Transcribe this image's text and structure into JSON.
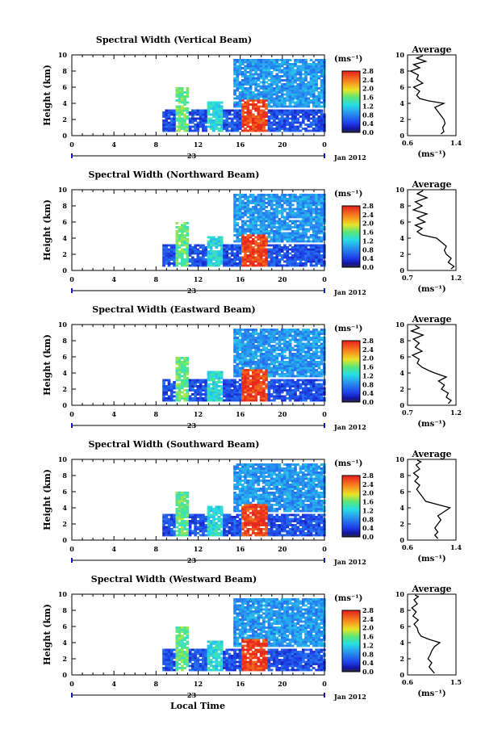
{
  "colorbar_ticks": [
    "0.0",
    "0.4",
    "0.8",
    "1.2",
    "1.6",
    "2.0",
    "2.4",
    "2.8"
  ],
  "colorbar_unit": "(ms⁻¹)",
  "x_axis": {
    "ticks": [
      "0",
      "4",
      "8",
      "12",
      "16",
      "20",
      "0"
    ],
    "day": "23",
    "month_year": "Jan 2012",
    "label": "Local Time"
  },
  "y_label": "Height (km)",
  "avg_unit": "(ms⁻¹)",
  "chart_data": [
    {
      "type": "heatmap",
      "title": "Spectral Width (Vertical Beam)",
      "xlabel": "Local Time",
      "ylabel": "Height (km)",
      "xlim": [
        0,
        24
      ],
      "ylim": [
        0,
        10
      ],
      "colorbar": {
        "unit": "(ms⁻¹)",
        "range": [
          0.0,
          2.8
        ]
      },
      "features": [
        {
          "x": [
            8.6,
            24
          ],
          "y": [
            0.4,
            3.2
          ],
          "value": 0.5
        },
        {
          "x": [
            9.8,
            11.0
          ],
          "y": [
            0.4,
            5.8
          ],
          "value": 1.6
        },
        {
          "x": [
            12.8,
            14.2
          ],
          "y": [
            0.4,
            4.2
          ],
          "value": 1.3
        },
        {
          "x": [
            15.3,
            24
          ],
          "y": [
            3.5,
            9.5
          ],
          "value": 0.9
        },
        {
          "x": [
            16.0,
            18.5
          ],
          "y": [
            0.4,
            4.5
          ],
          "value": 2.7
        }
      ],
      "average": {
        "title": "Average",
        "xlabel": "(ms⁻¹)",
        "xticks": [
          "0.6",
          "1.4"
        ],
        "xlim": [
          0.6,
          1.4
        ],
        "yticks": [
          "0",
          "2",
          "4",
          "6",
          "8",
          "10"
        ],
        "profile": [
          [
            1.15,
            0.2
          ],
          [
            1.2,
            0.5
          ],
          [
            1.18,
            1.0
          ],
          [
            1.22,
            1.5
          ],
          [
            1.2,
            2.0
          ],
          [
            1.15,
            2.5
          ],
          [
            1.1,
            3.0
          ],
          [
            1.05,
            3.5
          ],
          [
            1.2,
            4.0
          ],
          [
            0.95,
            4.3
          ],
          [
            0.8,
            4.6
          ],
          [
            0.75,
            5.0
          ],
          [
            0.8,
            5.5
          ],
          [
            0.7,
            6.0
          ],
          [
            0.85,
            6.5
          ],
          [
            0.75,
            7.0
          ],
          [
            0.78,
            7.5
          ],
          [
            0.65,
            8.0
          ],
          [
            0.8,
            8.4
          ],
          [
            0.7,
            8.8
          ],
          [
            0.9,
            9.2
          ],
          [
            0.75,
            9.6
          ],
          [
            0.85,
            9.9
          ]
        ]
      }
    },
    {
      "type": "heatmap",
      "title": "Spectral Width (Northward Beam)",
      "xlabel": "Local Time",
      "ylabel": "Height (km)",
      "xlim": [
        0,
        24
      ],
      "ylim": [
        0,
        10
      ],
      "colorbar": {
        "unit": "(ms⁻¹)",
        "range": [
          0.0,
          2.8
        ]
      },
      "features": [
        {
          "x": [
            8.6,
            24
          ],
          "y": [
            0.4,
            3.2
          ],
          "value": 0.5
        },
        {
          "x": [
            9.8,
            11.0
          ],
          "y": [
            0.4,
            5.8
          ],
          "value": 1.6
        },
        {
          "x": [
            12.8,
            14.2
          ],
          "y": [
            0.4,
            4.2
          ],
          "value": 1.3
        },
        {
          "x": [
            15.3,
            24
          ],
          "y": [
            3.5,
            9.5
          ],
          "value": 0.9
        },
        {
          "x": [
            16.0,
            18.5
          ],
          "y": [
            0.4,
            4.5
          ],
          "value": 2.7
        }
      ],
      "average": {
        "title": "Average",
        "xlabel": "(ms⁻¹)",
        "xticks": [
          "0.7",
          "1.2"
        ],
        "xlim": [
          0.7,
          1.2
        ],
        "yticks": [
          "0",
          "2",
          "4",
          "6",
          "8",
          "10"
        ],
        "profile": [
          [
            1.15,
            0.2
          ],
          [
            1.18,
            0.5
          ],
          [
            1.12,
            1.0
          ],
          [
            1.15,
            1.5
          ],
          [
            1.1,
            2.0
          ],
          [
            1.08,
            2.5
          ],
          [
            1.1,
            3.0
          ],
          [
            1.05,
            3.5
          ],
          [
            1.0,
            4.0
          ],
          [
            0.85,
            4.4
          ],
          [
            0.8,
            4.8
          ],
          [
            0.85,
            5.2
          ],
          [
            0.78,
            5.6
          ],
          [
            0.88,
            6.0
          ],
          [
            0.8,
            6.5
          ],
          [
            0.9,
            7.0
          ],
          [
            0.76,
            7.5
          ],
          [
            0.85,
            8.0
          ],
          [
            0.78,
            8.5
          ],
          [
            0.9,
            9.0
          ],
          [
            0.8,
            9.5
          ],
          [
            0.86,
            9.9
          ]
        ]
      }
    },
    {
      "type": "heatmap",
      "title": "Spectral Width (Eastward Beam)",
      "xlabel": "Local Time",
      "ylabel": "Height (km)",
      "xlim": [
        0,
        24
      ],
      "ylim": [
        0,
        10
      ],
      "colorbar": {
        "unit": "(ms⁻¹)",
        "range": [
          0.0,
          2.8
        ]
      },
      "features": [
        {
          "x": [
            8.6,
            24
          ],
          "y": [
            0.4,
            3.2
          ],
          "value": 0.5
        },
        {
          "x": [
            9.8,
            11.0
          ],
          "y": [
            0.4,
            5.8
          ],
          "value": 1.6
        },
        {
          "x": [
            12.8,
            14.2
          ],
          "y": [
            0.4,
            4.2
          ],
          "value": 1.3
        },
        {
          "x": [
            15.3,
            24
          ],
          "y": [
            3.5,
            9.5
          ],
          "value": 0.9
        },
        {
          "x": [
            16.0,
            18.5
          ],
          "y": [
            0.4,
            4.5
          ],
          "value": 2.7
        }
      ],
      "average": {
        "title": "Average",
        "xlabel": "(ms⁻¹)",
        "xticks": [
          "0.7",
          "1.2"
        ],
        "xlim": [
          0.7,
          1.2
        ],
        "yticks": [
          "0",
          "2",
          "4",
          "6",
          "8",
          "10"
        ],
        "profile": [
          [
            1.12,
            0.2
          ],
          [
            1.15,
            0.6
          ],
          [
            1.1,
            1.0
          ],
          [
            1.12,
            1.5
          ],
          [
            1.05,
            2.0
          ],
          [
            1.08,
            2.5
          ],
          [
            1.02,
            3.0
          ],
          [
            1.1,
            3.5
          ],
          [
            0.98,
            4.0
          ],
          [
            0.92,
            4.3
          ],
          [
            0.85,
            4.7
          ],
          [
            0.8,
            5.2
          ],
          [
            0.82,
            5.7
          ],
          [
            0.75,
            6.2
          ],
          [
            0.85,
            6.7
          ],
          [
            0.78,
            7.2
          ],
          [
            0.82,
            7.7
          ],
          [
            0.76,
            8.2
          ],
          [
            0.86,
            8.7
          ],
          [
            0.74,
            9.2
          ],
          [
            0.82,
            9.6
          ],
          [
            0.78,
            9.9
          ]
        ]
      }
    },
    {
      "type": "heatmap",
      "title": "Spectral Width (Southward Beam)",
      "xlabel": "Local Time",
      "ylabel": "Height (km)",
      "xlim": [
        0,
        24
      ],
      "ylim": [
        0,
        10
      ],
      "colorbar": {
        "unit": "(ms⁻¹)",
        "range": [
          0.0,
          2.8
        ]
      },
      "features": [
        {
          "x": [
            8.6,
            24
          ],
          "y": [
            0.4,
            3.2
          ],
          "value": 0.5
        },
        {
          "x": [
            9.8,
            11.0
          ],
          "y": [
            0.4,
            5.8
          ],
          "value": 1.6
        },
        {
          "x": [
            12.8,
            14.2
          ],
          "y": [
            0.4,
            4.2
          ],
          "value": 1.3
        },
        {
          "x": [
            15.3,
            24
          ],
          "y": [
            3.5,
            9.5
          ],
          "value": 0.9
        },
        {
          "x": [
            16.0,
            18.5
          ],
          "y": [
            0.4,
            4.5
          ],
          "value": 2.7
        }
      ],
      "average": {
        "title": "Average",
        "xlabel": "(ms⁻¹)",
        "xticks": [
          "0.6",
          "1.4"
        ],
        "xlim": [
          0.6,
          1.4
        ],
        "yticks": [
          "0",
          "2",
          "4",
          "6",
          "8",
          "10"
        ],
        "profile": [
          [
            1.1,
            0.2
          ],
          [
            1.05,
            0.6
          ],
          [
            1.1,
            1.0
          ],
          [
            1.05,
            1.5
          ],
          [
            1.1,
            2.0
          ],
          [
            1.15,
            2.5
          ],
          [
            1.1,
            3.0
          ],
          [
            1.2,
            3.5
          ],
          [
            1.3,
            4.0
          ],
          [
            1.1,
            4.4
          ],
          [
            0.9,
            4.8
          ],
          [
            0.85,
            5.3
          ],
          [
            0.8,
            5.8
          ],
          [
            0.75,
            6.3
          ],
          [
            0.8,
            6.8
          ],
          [
            0.72,
            7.3
          ],
          [
            0.78,
            7.8
          ],
          [
            0.7,
            8.3
          ],
          [
            0.8,
            8.8
          ],
          [
            0.74,
            9.3
          ],
          [
            0.82,
            9.7
          ],
          [
            0.76,
            9.9
          ]
        ]
      }
    },
    {
      "type": "heatmap",
      "title": "Spectral Width (Westward Beam)",
      "xlabel": "Local Time",
      "ylabel": "Height (km)",
      "xlim": [
        0,
        24
      ],
      "ylim": [
        0,
        10
      ],
      "colorbar": {
        "unit": "(ms⁻¹)",
        "range": [
          0.0,
          2.8
        ]
      },
      "features": [
        {
          "x": [
            8.6,
            24
          ],
          "y": [
            0.4,
            3.2
          ],
          "value": 0.5
        },
        {
          "x": [
            9.8,
            11.0
          ],
          "y": [
            0.4,
            5.8
          ],
          "value": 1.6
        },
        {
          "x": [
            12.8,
            14.2
          ],
          "y": [
            0.4,
            4.2
          ],
          "value": 1.3
        },
        {
          "x": [
            15.3,
            24
          ],
          "y": [
            3.5,
            9.5
          ],
          "value": 0.9
        },
        {
          "x": [
            16.0,
            18.5
          ],
          "y": [
            0.4,
            4.5
          ],
          "value": 2.7
        }
      ],
      "average": {
        "title": "Average",
        "xlabel": "(ms⁻¹)",
        "xticks": [
          "0.6",
          "1.5"
        ],
        "xlim": [
          0.6,
          1.5
        ],
        "yticks": [
          "0",
          "2",
          "4",
          "6",
          "8",
          "10"
        ],
        "profile": [
          [
            1.1,
            0.2
          ],
          [
            1.05,
            0.6
          ],
          [
            1.0,
            1.0
          ],
          [
            1.05,
            1.5
          ],
          [
            0.98,
            2.0
          ],
          [
            1.02,
            2.5
          ],
          [
            1.05,
            3.0
          ],
          [
            1.1,
            3.5
          ],
          [
            1.2,
            4.0
          ],
          [
            1.0,
            4.4
          ],
          [
            0.85,
            4.8
          ],
          [
            0.8,
            5.3
          ],
          [
            0.78,
            5.8
          ],
          [
            0.72,
            6.3
          ],
          [
            0.8,
            6.8
          ],
          [
            0.7,
            7.3
          ],
          [
            0.76,
            7.8
          ],
          [
            0.68,
            8.3
          ],
          [
            0.78,
            8.8
          ],
          [
            0.72,
            9.3
          ],
          [
            0.8,
            9.7
          ],
          [
            0.74,
            9.9
          ]
        ]
      }
    }
  ]
}
